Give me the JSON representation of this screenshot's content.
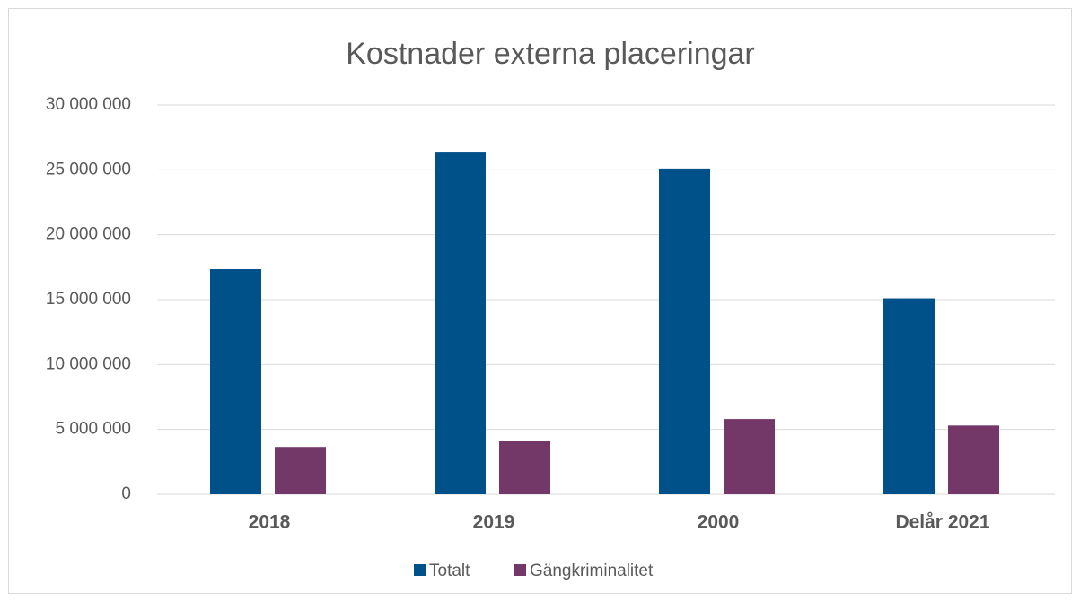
{
  "chart_data": {
    "type": "bar",
    "title": "Kostnader externa placeringar",
    "categories": [
      "2018",
      "2019",
      "2000",
      "Delår 2021"
    ],
    "series": [
      {
        "name": "Totalt",
        "color": "#00508a",
        "values": [
          17350000,
          26400000,
          25100000,
          15100000
        ]
      },
      {
        "name": "Gängkriminalitet",
        "color": "#733768",
        "values": [
          3650000,
          4100000,
          5800000,
          5300000
        ]
      }
    ],
    "ylim": [
      0,
      30000000
    ],
    "yticks": [
      0,
      {
        "value": 5000000,
        "label": "5 000 000"
      },
      {
        "value": 10000000,
        "label": "10 000 000"
      },
      {
        "value": 15000000,
        "label": "15 000 000"
      },
      {
        "value": 20000000,
        "label": "20 000 000"
      },
      {
        "value": 25000000,
        "label": "25 000 000"
      },
      {
        "value": 30000000,
        "label": "30 000 000"
      }
    ],
    "grid": true,
    "legend": "bottom"
  }
}
